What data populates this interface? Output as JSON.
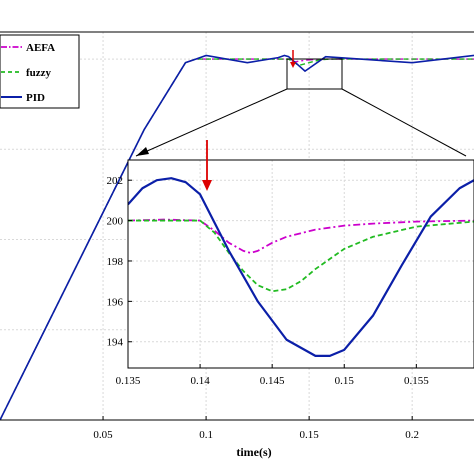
{
  "chart_data": [
    {
      "type": "line",
      "xlabel": "time(s)",
      "ylabel": "",
      "x_ticks": [
        "0.05",
        "0.1",
        "0.15",
        "0.2"
      ],
      "xlim": [
        0.0,
        0.23
      ],
      "ylim": [
        0,
        215
      ],
      "grid": true,
      "legend_position": "top-left",
      "series": [
        {
          "name": "AEFA",
          "color": "#cc00cc",
          "dash": "dash-dot",
          "x": [
            0.0,
            0.01,
            0.03,
            0.05,
            0.07,
            0.09,
            0.095,
            0.1,
            0.12,
            0.135,
            0.14,
            0.143,
            0.146,
            0.15,
            0.16,
            0.2,
            0.23
          ],
          "y": [
            0,
            23,
            69,
            115,
            161,
            198,
            200,
            200,
            200,
            200,
            200,
            198.4,
            199,
            199.6,
            200,
            200,
            200
          ]
        },
        {
          "name": "fuzzy",
          "color": "#22bb22",
          "dash": "dashed",
          "x": [
            0.0,
            0.01,
            0.03,
            0.05,
            0.07,
            0.09,
            0.095,
            0.1,
            0.12,
            0.135,
            0.14,
            0.145,
            0.15,
            0.155,
            0.16,
            0.2,
            0.23
          ],
          "y": [
            0,
            23,
            69,
            115,
            161,
            198,
            200,
            200,
            200,
            200,
            200,
            196.5,
            198,
            199.5,
            200,
            200,
            200
          ]
        },
        {
          "name": "PID",
          "color": "#0b1fa8",
          "dash": "solid",
          "x": [
            0.0,
            0.01,
            0.03,
            0.05,
            0.07,
            0.09,
            0.095,
            0.1,
            0.12,
            0.135,
            0.138,
            0.14,
            0.148,
            0.158,
            0.2,
            0.23
          ],
          "y": [
            0,
            23,
            69,
            115,
            161,
            198,
            200,
            202,
            198,
            200.8,
            202,
            201.4,
            193.3,
            201.3,
            198,
            202
          ]
        }
      ]
    },
    {
      "type": "line",
      "inset": true,
      "x_ticks": [
        "0.135",
        "0.14",
        "0.145",
        "0.15",
        "0.155"
      ],
      "y_ticks": [
        "194",
        "196",
        "198",
        "200",
        "202"
      ],
      "xlim": [
        0.135,
        0.159
      ],
      "ylim": [
        192.7,
        203.0
      ],
      "series": [
        {
          "name": "AEFA",
          "color": "#cc00cc",
          "dash": "dash-dot",
          "x": [
            0.135,
            0.1375,
            0.14,
            0.141,
            0.142,
            0.143,
            0.1435,
            0.144,
            0.145,
            0.146,
            0.148,
            0.15,
            0.152,
            0.155,
            0.159
          ],
          "y": [
            200.0,
            200.05,
            200.0,
            199.5,
            198.9,
            198.5,
            198.4,
            198.5,
            198.9,
            199.2,
            199.55,
            199.75,
            199.85,
            199.95,
            200.0
          ]
        },
        {
          "name": "fuzzy",
          "color": "#22bb22",
          "dash": "dashed",
          "x": [
            0.135,
            0.14,
            0.141,
            0.142,
            0.143,
            0.144,
            0.145,
            0.146,
            0.147,
            0.148,
            0.15,
            0.152,
            0.155,
            0.159
          ],
          "y": [
            200.0,
            200.0,
            199.4,
            198.4,
            197.5,
            196.8,
            196.5,
            196.6,
            197.0,
            197.6,
            198.6,
            199.2,
            199.7,
            199.95
          ]
        },
        {
          "name": "PID",
          "color": "#0b1fa8",
          "dash": "solid",
          "x": [
            0.135,
            0.136,
            0.137,
            0.138,
            0.139,
            0.14,
            0.142,
            0.144,
            0.146,
            0.148,
            0.149,
            0.15,
            0.152,
            0.154,
            0.156,
            0.158,
            0.159
          ],
          "y": [
            200.8,
            201.6,
            202.0,
            202.1,
            201.9,
            201.3,
            198.5,
            196.0,
            194.1,
            193.3,
            193.3,
            193.6,
            195.3,
            197.8,
            200.2,
            201.6,
            202.0
          ]
        }
      ]
    }
  ]
}
